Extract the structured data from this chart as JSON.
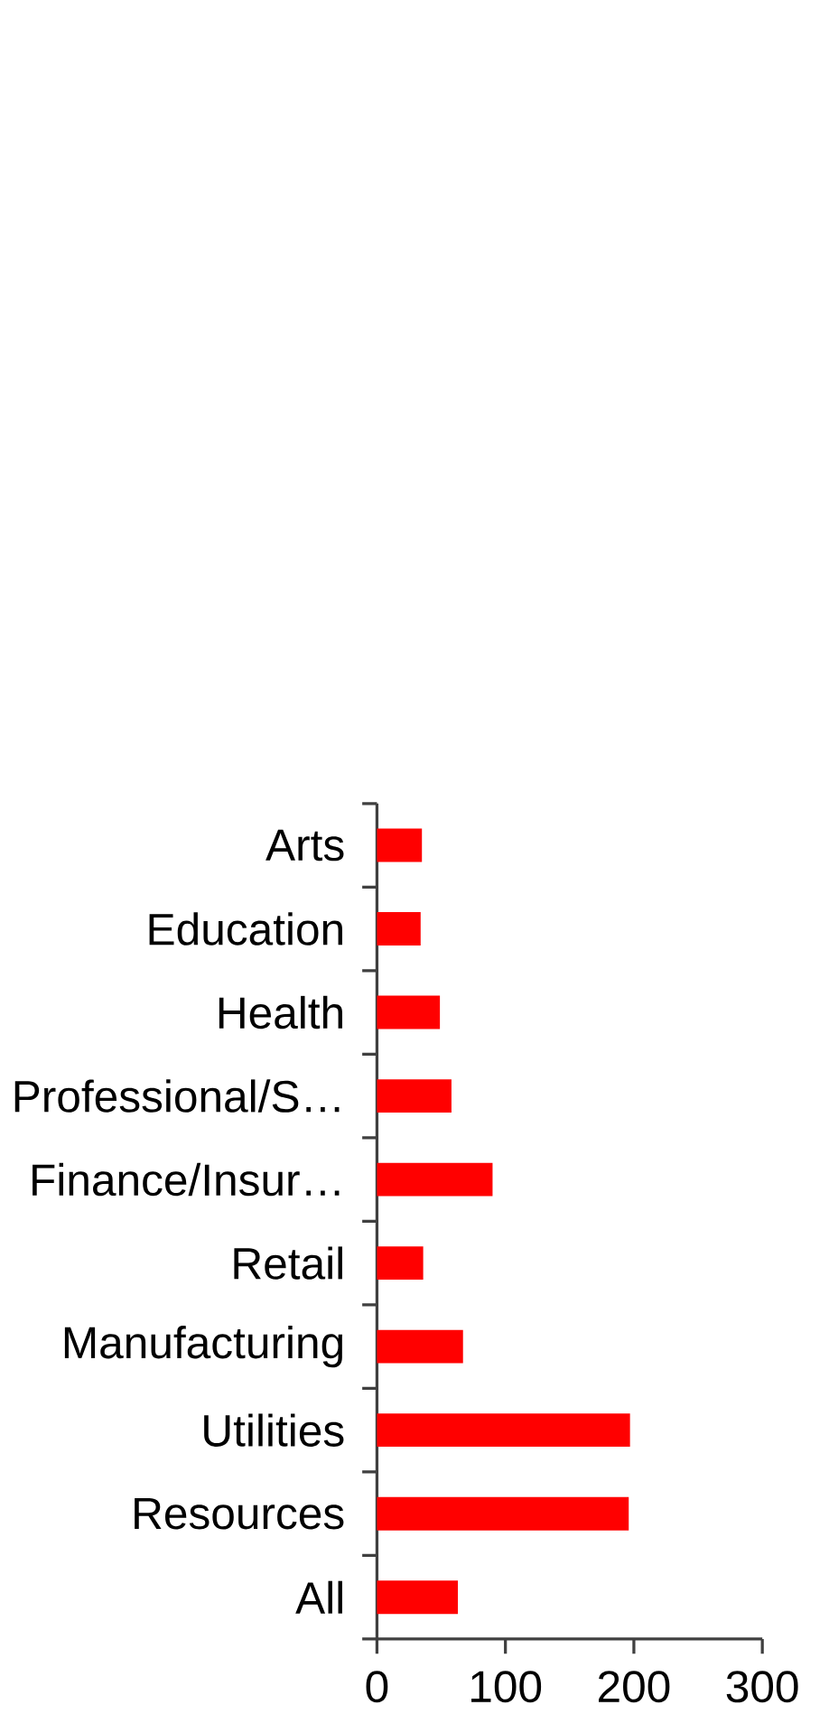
{
  "chart_data": {
    "type": "bar",
    "orientation": "horizontal",
    "categories": [
      "Arts",
      "Education",
      "Health",
      "Professional/S…",
      "Finance/Insur…",
      "Retail",
      "Manufacturing",
      "Utilities",
      "Resources",
      "All"
    ],
    "values": [
      35,
      34,
      49,
      58,
      90,
      36,
      67,
      197,
      196,
      63
    ],
    "color": "#ff0000",
    "xlim": [
      0,
      300
    ],
    "xticks": [
      0,
      100,
      200,
      300
    ],
    "grid": false
  }
}
